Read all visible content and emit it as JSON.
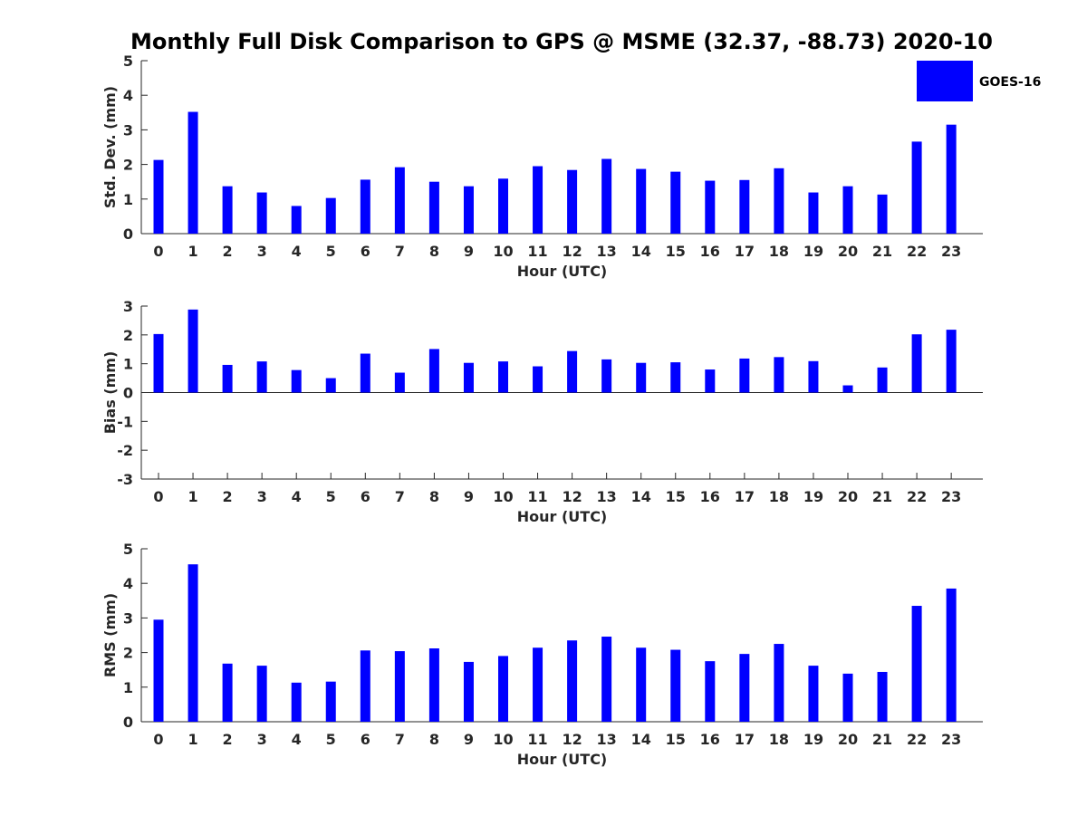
{
  "chart_data": {
    "type": "bar",
    "title": "Monthly Full Disk Comparison to GPS @ MSME (32.37, -88.73) 2020-10",
    "legend": {
      "label": "GOES-16",
      "placement": "top-right"
    },
    "bar_color": "#0000ff",
    "categories": [
      "0",
      "1",
      "2",
      "3",
      "4",
      "5",
      "6",
      "7",
      "8",
      "9",
      "10",
      "11",
      "12",
      "13",
      "14",
      "15",
      "16",
      "17",
      "18",
      "19",
      "20",
      "21",
      "22",
      "23"
    ],
    "panels": [
      {
        "name": "std-dev",
        "xlabel": "Hour (UTC)",
        "ylabel": "Std. Dev. (mm)",
        "ylim": [
          0,
          5
        ],
        "yticks": [
          0,
          1,
          2,
          3,
          4,
          5
        ],
        "values": [
          2.13,
          3.52,
          1.37,
          1.19,
          0.8,
          1.03,
          1.56,
          1.92,
          1.5,
          1.37,
          1.59,
          1.95,
          1.84,
          2.16,
          1.87,
          1.79,
          1.53,
          1.55,
          1.89,
          1.19,
          1.37,
          1.13,
          2.66,
          3.15
        ]
      },
      {
        "name": "bias",
        "xlabel": "Hour (UTC)",
        "ylabel": "Bias (mm)",
        "ylim": [
          -3,
          3
        ],
        "yticks": [
          -3,
          -2,
          -1,
          0,
          1,
          2,
          3
        ],
        "values": [
          2.03,
          2.88,
          0.96,
          1.08,
          0.78,
          0.5,
          1.35,
          0.69,
          1.51,
          1.03,
          1.08,
          0.91,
          1.44,
          1.15,
          1.03,
          1.05,
          0.8,
          1.18,
          1.23,
          1.09,
          0.25,
          0.87,
          2.02,
          2.18
        ]
      },
      {
        "name": "rms",
        "xlabel": "Hour (UTC)",
        "ylabel": "RMS (mm)",
        "ylim": [
          0,
          5
        ],
        "yticks": [
          0,
          1,
          2,
          3,
          4,
          5
        ],
        "values": [
          2.95,
          4.55,
          1.68,
          1.62,
          1.13,
          1.16,
          2.06,
          2.04,
          2.12,
          1.73,
          1.9,
          2.14,
          2.35,
          2.46,
          2.14,
          2.08,
          1.75,
          1.96,
          2.25,
          1.62,
          1.39,
          1.44,
          3.35,
          3.85
        ]
      }
    ]
  }
}
